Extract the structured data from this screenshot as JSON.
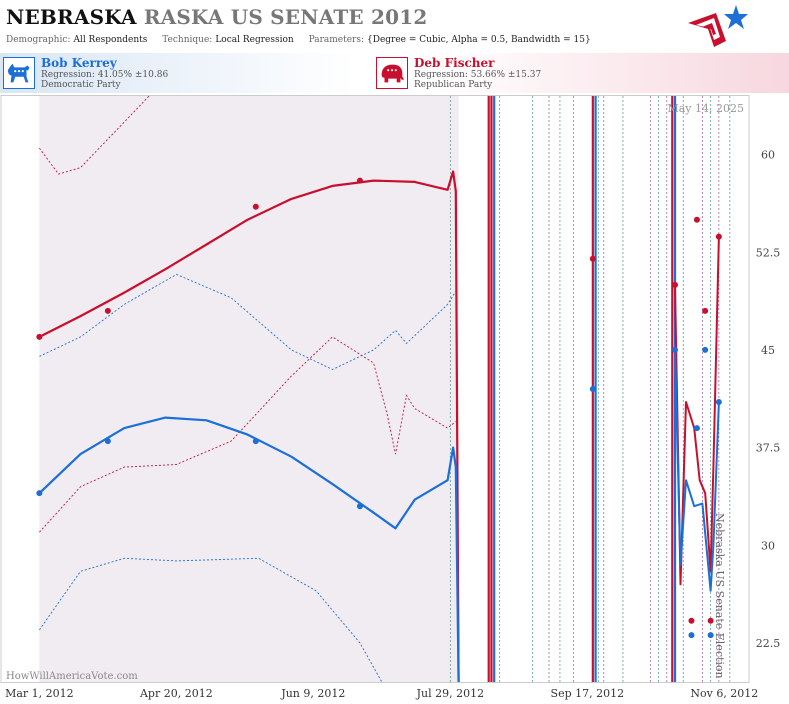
{
  "header": {
    "title_state": "NEBRASKA",
    "title_race": "RASKA US SENATE 2012",
    "demographic_label": "Demographic:",
    "demographic_value": "All Respondents",
    "technique_label": "Technique:",
    "technique_value": "Local Regression",
    "parameters_label": "Parameters:",
    "parameters_value": "{Degree = Cubic, Alpha = 0.5, Bandwidth = 15}"
  },
  "candidates": {
    "dem": {
      "name": "Bob Kerrey",
      "regression": "Regression: 41.05% ±10.86",
      "party": "Democratic Party",
      "color": "#1b6fd6"
    },
    "rep": {
      "name": "Deb Fischer",
      "regression": "Regression: 53.66% ±15.37",
      "party": "Republican Party",
      "color": "#c8102e"
    }
  },
  "chart_data": {
    "type": "line",
    "date_label": "May 14, 2025",
    "watermark": "HowWillAmericaVote.com",
    "side_label": "Nebraska US Senate Election",
    "x_ticks": [
      {
        "date": "2012-03-01",
        "label": "Mar 1, 2012"
      },
      {
        "date": "2012-04-20",
        "label": "Apr 20, 2012"
      },
      {
        "date": "2012-06-09",
        "label": "Jun 9, 2012"
      },
      {
        "date": "2012-07-29",
        "label": "Jul 29, 2012"
      },
      {
        "date": "2012-09-17",
        "label": "Sep 17, 2012"
      },
      {
        "date": "2012-11-06",
        "label": "Nov 6, 2012"
      }
    ],
    "y_ticks": [
      "22.5",
      "30",
      "37.5",
      "45",
      "52.5",
      "60"
    ],
    "xlim": [
      "2012-02-16",
      "2012-11-15"
    ],
    "ylim": [
      19.5,
      64.5
    ],
    "grid": false,
    "poll_dates": [
      "2012-07-29",
      "2012-08-12",
      "2012-08-13",
      "2012-08-16",
      "2012-08-28",
      "2012-09-03",
      "2012-09-07",
      "2012-09-12",
      "2012-09-21",
      "2012-09-23",
      "2012-09-30",
      "2012-10-10",
      "2012-10-13",
      "2012-10-16",
      "2012-10-22",
      "2012-10-29",
      "2012-11-01",
      "2012-11-04",
      "2012-11-08"
    ],
    "series": [
      {
        "party": "rep",
        "color": "#c8102e",
        "points": [
          {
            "date": "2012-03-01",
            "value": 46
          },
          {
            "date": "2012-03-26",
            "value": 48
          },
          {
            "date": "2012-05-19",
            "value": 56
          },
          {
            "date": "2012-06-26",
            "value": 58
          },
          {
            "date": "2012-09-19",
            "value": 52
          },
          {
            "date": "2012-10-19",
            "value": 50
          },
          {
            "date": "2012-10-27",
            "value": 55
          },
          {
            "date": "2012-10-30",
            "value": 48
          },
          {
            "date": "2012-10-25",
            "value": 24.2
          },
          {
            "date": "2012-11-01",
            "value": 24.2
          },
          {
            "date": "2012-11-04",
            "value": 53.7
          }
        ],
        "trend": [
          {
            "date": "2012-03-01",
            "value": 46
          },
          {
            "date": "2012-03-16",
            "value": 47.6
          },
          {
            "date": "2012-04-01",
            "value": 49.4
          },
          {
            "date": "2012-04-16",
            "value": 51.2
          },
          {
            "date": "2012-05-01",
            "value": 53.1
          },
          {
            "date": "2012-05-16",
            "value": 55
          },
          {
            "date": "2012-06-01",
            "value": 56.6
          },
          {
            "date": "2012-06-16",
            "value": 57.6
          },
          {
            "date": "2012-07-01",
            "value": 58
          },
          {
            "date": "2012-07-16",
            "value": 57.9
          },
          {
            "date": "2012-07-28",
            "value": 57.3
          },
          {
            "date": "2012-07-30",
            "value": 58.7
          },
          {
            "date": "2012-07-31",
            "value": 57.2
          },
          {
            "date": "2012-08-01",
            "value": 19.5
          }
        ],
        "upper": [
          {
            "date": "2012-03-01",
            "value": 60.5
          },
          {
            "date": "2012-03-08",
            "value": 58.5
          },
          {
            "date": "2012-03-16",
            "value": 59
          },
          {
            "date": "2012-04-01",
            "value": 62.5
          },
          {
            "date": "2012-04-10",
            "value": 64.5
          }
        ],
        "lower": [
          {
            "date": "2012-03-01",
            "value": 31
          },
          {
            "date": "2012-03-16",
            "value": 34.5
          },
          {
            "date": "2012-04-01",
            "value": 36
          },
          {
            "date": "2012-04-20",
            "value": 36.2
          },
          {
            "date": "2012-05-10",
            "value": 38
          },
          {
            "date": "2012-06-01",
            "value": 43
          },
          {
            "date": "2012-06-16",
            "value": 46
          },
          {
            "date": "2012-07-01",
            "value": 44
          },
          {
            "date": "2012-07-06",
            "value": 40
          },
          {
            "date": "2012-07-09",
            "value": 37
          },
          {
            "date": "2012-07-13",
            "value": 41.5
          },
          {
            "date": "2012-07-16",
            "value": 40.5
          },
          {
            "date": "2012-07-28",
            "value": 39
          },
          {
            "date": "2012-07-31",
            "value": 39.5
          }
        ]
      },
      {
        "party": "dem",
        "color": "#1b6fd6",
        "points": [
          {
            "date": "2012-03-01",
            "value": 34
          },
          {
            "date": "2012-03-26",
            "value": 38
          },
          {
            "date": "2012-05-19",
            "value": 38
          },
          {
            "date": "2012-06-26",
            "value": 33
          },
          {
            "date": "2012-09-19",
            "value": 42
          },
          {
            "date": "2012-10-19",
            "value": 45
          },
          {
            "date": "2012-10-27",
            "value": 39
          },
          {
            "date": "2012-10-30",
            "value": 45
          },
          {
            "date": "2012-10-25",
            "value": 23.1
          },
          {
            "date": "2012-11-01",
            "value": 23.1
          },
          {
            "date": "2012-11-04",
            "value": 41
          }
        ],
        "trend": [
          {
            "date": "2012-03-01",
            "value": 34
          },
          {
            "date": "2012-03-16",
            "value": 37
          },
          {
            "date": "2012-04-01",
            "value": 39
          },
          {
            "date": "2012-04-16",
            "value": 39.8
          },
          {
            "date": "2012-05-01",
            "value": 39.6
          },
          {
            "date": "2012-05-16",
            "value": 38.5
          },
          {
            "date": "2012-06-01",
            "value": 36.8
          },
          {
            "date": "2012-06-16",
            "value": 34.7
          },
          {
            "date": "2012-07-01",
            "value": 32.5
          },
          {
            "date": "2012-07-09",
            "value": 31.3
          },
          {
            "date": "2012-07-16",
            "value": 33.5
          },
          {
            "date": "2012-07-28",
            "value": 35
          },
          {
            "date": "2012-07-30",
            "value": 37.5
          },
          {
            "date": "2012-07-31",
            "value": 36
          },
          {
            "date": "2012-08-01",
            "value": 19.5
          }
        ],
        "upper": [
          {
            "date": "2012-03-01",
            "value": 44.5
          },
          {
            "date": "2012-03-16",
            "value": 46
          },
          {
            "date": "2012-04-01",
            "value": 48.5
          },
          {
            "date": "2012-04-20",
            "value": 50.8
          },
          {
            "date": "2012-05-10",
            "value": 49
          },
          {
            "date": "2012-06-01",
            "value": 45
          },
          {
            "date": "2012-06-16",
            "value": 43.5
          },
          {
            "date": "2012-07-01",
            "value": 45
          },
          {
            "date": "2012-07-09",
            "value": 46.5
          },
          {
            "date": "2012-07-13",
            "value": 45.5
          },
          {
            "date": "2012-07-28",
            "value": 48.5
          },
          {
            "date": "2012-07-31",
            "value": 49.5
          }
        ],
        "lower": [
          {
            "date": "2012-03-01",
            "value": 23.5
          },
          {
            "date": "2012-03-16",
            "value": 28
          },
          {
            "date": "2012-04-01",
            "value": 29
          },
          {
            "date": "2012-04-20",
            "value": 28.8
          },
          {
            "date": "2012-05-20",
            "value": 29
          },
          {
            "date": "2012-06-10",
            "value": 26.5
          },
          {
            "date": "2012-06-26",
            "value": 22.5
          },
          {
            "date": "2012-07-04",
            "value": 19.5
          }
        ]
      }
    ]
  }
}
